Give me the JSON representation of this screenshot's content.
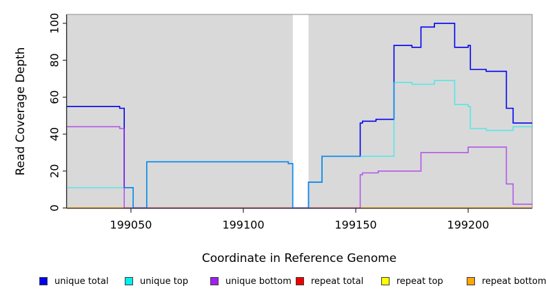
{
  "figure": {
    "background": "#FFFFFF"
  },
  "y_axis": {
    "label": "Read Coverage Depth",
    "tick_labels": [
      "0",
      "20",
      "40",
      "60",
      "80",
      "100"
    ]
  },
  "x_axis": {
    "label": "Coordinate in Reference Genome",
    "tick_labels": [
      "199050",
      "199100",
      "199150",
      "199200"
    ]
  },
  "legend": {
    "items": [
      {
        "label": "unique total",
        "color": "#0000EE"
      },
      {
        "label": "unique top",
        "color": "#00EEEE"
      },
      {
        "label": "unique bottom",
        "color": "#A020F0"
      },
      {
        "label": "repeat total",
        "color": "#EE0000"
      },
      {
        "label": "repeat top",
        "color": "#FFFF00"
      },
      {
        "label": "repeat bottom",
        "color": "#FFA500"
      }
    ]
  },
  "chart_data": {
    "type": "line",
    "subtype": "step",
    "title": "",
    "xlabel": "Coordinate in Reference Genome",
    "ylabel": "Read Coverage Depth",
    "xlim": [
      199021.5,
      199228.5
    ],
    "ylim": [
      0,
      104.8
    ],
    "x_ticks": [
      199050,
      199100,
      199150,
      199200
    ],
    "y_ticks": [
      0,
      20,
      40,
      60,
      80,
      100
    ],
    "grid": false,
    "legend_position": "bottom",
    "panel_background": "#D9D9D9",
    "missing_data_region": {
      "x_start": 199122,
      "x_end": 199129
    },
    "series": [
      {
        "name": "repeat total",
        "color": "#DD0000",
        "opacity": 1.0,
        "steps": [
          [
            199021.5,
            0
          ]
        ],
        "x_end": 199228.5
      },
      {
        "name": "repeat top",
        "color": "#FFFF00",
        "opacity": 1.0,
        "steps": [
          [
            199021.5,
            0
          ]
        ],
        "x_end": 199228.5
      },
      {
        "name": "repeat bottom",
        "color": "#FFA500",
        "opacity": 1.0,
        "steps": [
          [
            199021.5,
            0
          ]
        ],
        "x_end": 199228.5
      },
      {
        "name": "unique total",
        "color": "#0000EE",
        "opacity": 1.0,
        "steps": [
          [
            199021.5,
            55
          ],
          [
            199045,
            54
          ],
          [
            199047,
            11
          ],
          [
            199051,
            0
          ],
          [
            199057,
            25
          ],
          [
            199120,
            24
          ],
          [
            199122,
            0
          ],
          [
            199129,
            14
          ],
          [
            199135,
            28
          ],
          [
            199152,
            46
          ],
          [
            199153,
            47
          ],
          [
            199159,
            48
          ],
          [
            199167,
            88
          ],
          [
            199175,
            87
          ],
          [
            199179,
            98
          ],
          [
            199185,
            100
          ],
          [
            199194,
            87
          ],
          [
            199200,
            88
          ],
          [
            199201,
            75
          ],
          [
            199208,
            74
          ],
          [
            199217,
            54
          ],
          [
            199220,
            46
          ]
        ],
        "x_end": 199228.5
      },
      {
        "name": "unique top",
        "color": "#00EEEE",
        "opacity": 0.6,
        "steps": [
          [
            199021.5,
            11
          ],
          [
            199051,
            0
          ],
          [
            199057,
            25
          ],
          [
            199120,
            24
          ],
          [
            199122,
            0
          ],
          [
            199129,
            14
          ],
          [
            199135,
            28
          ],
          [
            199167,
            68
          ],
          [
            199175,
            67
          ],
          [
            199185,
            69
          ],
          [
            199194,
            56
          ],
          [
            199200,
            55
          ],
          [
            199201,
            43
          ],
          [
            199208,
            42
          ],
          [
            199220,
            44
          ]
        ],
        "x_end": 199228.5
      },
      {
        "name": "unique bottom",
        "color": "#A020F0",
        "opacity": 0.7,
        "steps": [
          [
            199021.5,
            44
          ],
          [
            199045,
            43
          ],
          [
            199047,
            0
          ],
          [
            199152,
            18
          ],
          [
            199153,
            19
          ],
          [
            199160,
            20
          ],
          [
            199179,
            30
          ],
          [
            199200,
            33
          ],
          [
            199217,
            13
          ],
          [
            199220,
            2
          ]
        ],
        "x_end": 199228.5
      }
    ]
  }
}
